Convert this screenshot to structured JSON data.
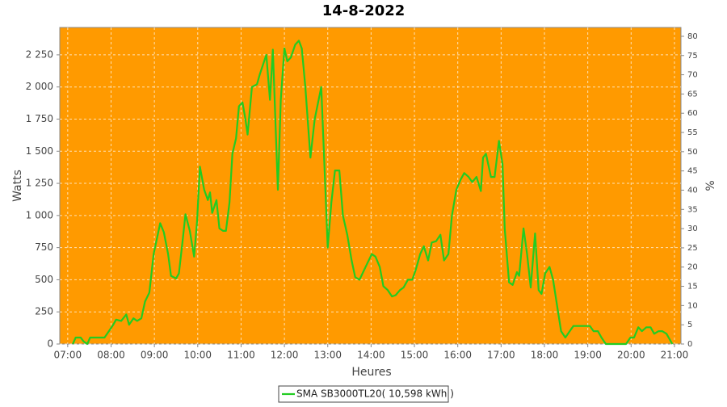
{
  "chart_data": {
    "type": "line",
    "title": "14-8-2022",
    "x_label": "Heures",
    "y_label": "Watts",
    "y2_label": "%",
    "background": "#ff9a00",
    "grid": true,
    "legend": "bottom",
    "xlim": [
      409,
      1269
    ],
    "xticks": [
      {
        "value": 420,
        "label": "07:00"
      },
      {
        "value": 480,
        "label": "08:00"
      },
      {
        "value": 540,
        "label": "09:00"
      },
      {
        "value": 600,
        "label": "10:00"
      },
      {
        "value": 660,
        "label": "11:00"
      },
      {
        "value": 720,
        "label": "12:00"
      },
      {
        "value": 780,
        "label": "13:00"
      },
      {
        "value": 840,
        "label": "14:00"
      },
      {
        "value": 900,
        "label": "15:00"
      },
      {
        "value": 960,
        "label": "16:00"
      },
      {
        "value": 1020,
        "label": "17:00"
      },
      {
        "value": 1080,
        "label": "18:00"
      },
      {
        "value": 1140,
        "label": "19:00"
      },
      {
        "value": 1200,
        "label": "20:00"
      },
      {
        "value": 1260,
        "label": "21:00"
      }
    ],
    "ylim": [
      0,
      2463
    ],
    "yticks": [
      0,
      250,
      500,
      750,
      {
        "value": 1000,
        "label": "1 000"
      },
      {
        "value": 1250,
        "label": "1 250"
      },
      {
        "value": 1500,
        "label": "1 500"
      },
      {
        "value": 1750,
        "label": "1 750"
      },
      {
        "value": 2000,
        "label": "2 000"
      },
      {
        "value": 2250,
        "label": "2 250"
      }
    ],
    "y2lim": [
      0,
      82.3
    ],
    "y2ticks": [
      0,
      5,
      10,
      15,
      20,
      25,
      30,
      35,
      40,
      45,
      50,
      55,
      60,
      65,
      70,
      75,
      80
    ],
    "series": [
      {
        "name": "SMA SB3000TL20( 10,598 kWh )",
        "color": "#22cc22",
        "x": [
          427,
          431,
          438,
          442,
          447,
          451,
          466,
          471,
          477,
          483,
          487,
          494,
          501,
          505,
          511,
          516,
          522,
          527,
          533,
          539,
          548,
          553,
          559,
          563,
          570,
          574,
          579,
          583,
          589,
          595,
          599,
          603,
          609,
          614,
          617,
          620,
          626,
          630,
          635,
          639,
          644,
          648,
          653,
          657,
          662,
          666,
          669,
          675,
          682,
          686,
          695,
          700,
          704,
          711,
          715,
          720,
          724,
          729,
          735,
          740,
          744,
          749,
          756,
          762,
          771,
          776,
          780,
          785,
          790,
          796,
          801,
          807,
          813,
          818,
          824,
          829,
          835,
          841,
          846,
          852,
          857,
          863,
          869,
          874,
          880,
          885,
          891,
          897,
          902,
          908,
          913,
          919,
          924,
          930,
          936,
          941,
          947,
          952,
          958,
          964,
          969,
          975,
          980,
          986,
          992,
          995,
          999,
          1006,
          1011,
          1017,
          1022,
          1025,
          1031,
          1036,
          1042,
          1045,
          1051,
          1056,
          1061,
          1067,
          1072,
          1076,
          1081,
          1087,
          1092,
          1098,
          1103,
          1109,
          1115,
          1120,
          1131,
          1143,
          1148,
          1154,
          1159,
          1165,
          1193,
          1199,
          1204,
          1210,
          1215,
          1221,
          1227,
          1232,
          1238,
          1243,
          1249,
          1257
        ],
        "values": [
          0,
          50,
          50,
          20,
          0,
          50,
          50,
          50,
          100,
          150,
          190,
          180,
          230,
          150,
          200,
          180,
          200,
          330,
          400,
          700,
          940,
          870,
          700,
          530,
          510,
          550,
          800,
          1010,
          880,
          680,
          950,
          1380,
          1200,
          1120,
          1180,
          1020,
          1120,
          900,
          880,
          880,
          1100,
          1480,
          1600,
          1850,
          1880,
          1750,
          1630,
          2000,
          2020,
          2100,
          2250,
          1900,
          2290,
          1200,
          1900,
          2300,
          2200,
          2230,
          2330,
          2360,
          2300,
          2000,
          1450,
          1750,
          2000,
          1300,
          750,
          1100,
          1350,
          1350,
          1000,
          850,
          650,
          520,
          500,
          560,
          630,
          700,
          680,
          600,
          450,
          420,
          370,
          380,
          420,
          440,
          500,
          500,
          580,
          700,
          760,
          650,
          790,
          800,
          850,
          650,
          700,
          1000,
          1200,
          1280,
          1330,
          1300,
          1260,
          1300,
          1190,
          1450,
          1480,
          1300,
          1300,
          1580,
          1400,
          900,
          480,
          460,
          560,
          530,
          900,
          700,
          440,
          860,
          420,
          390,
          550,
          600,
          500,
          280,
          100,
          50,
          100,
          140,
          140,
          140,
          100,
          100,
          50,
          0,
          0,
          50,
          50,
          130,
          100,
          130,
          130,
          80,
          100,
          100,
          80,
          0
        ]
      }
    ]
  }
}
